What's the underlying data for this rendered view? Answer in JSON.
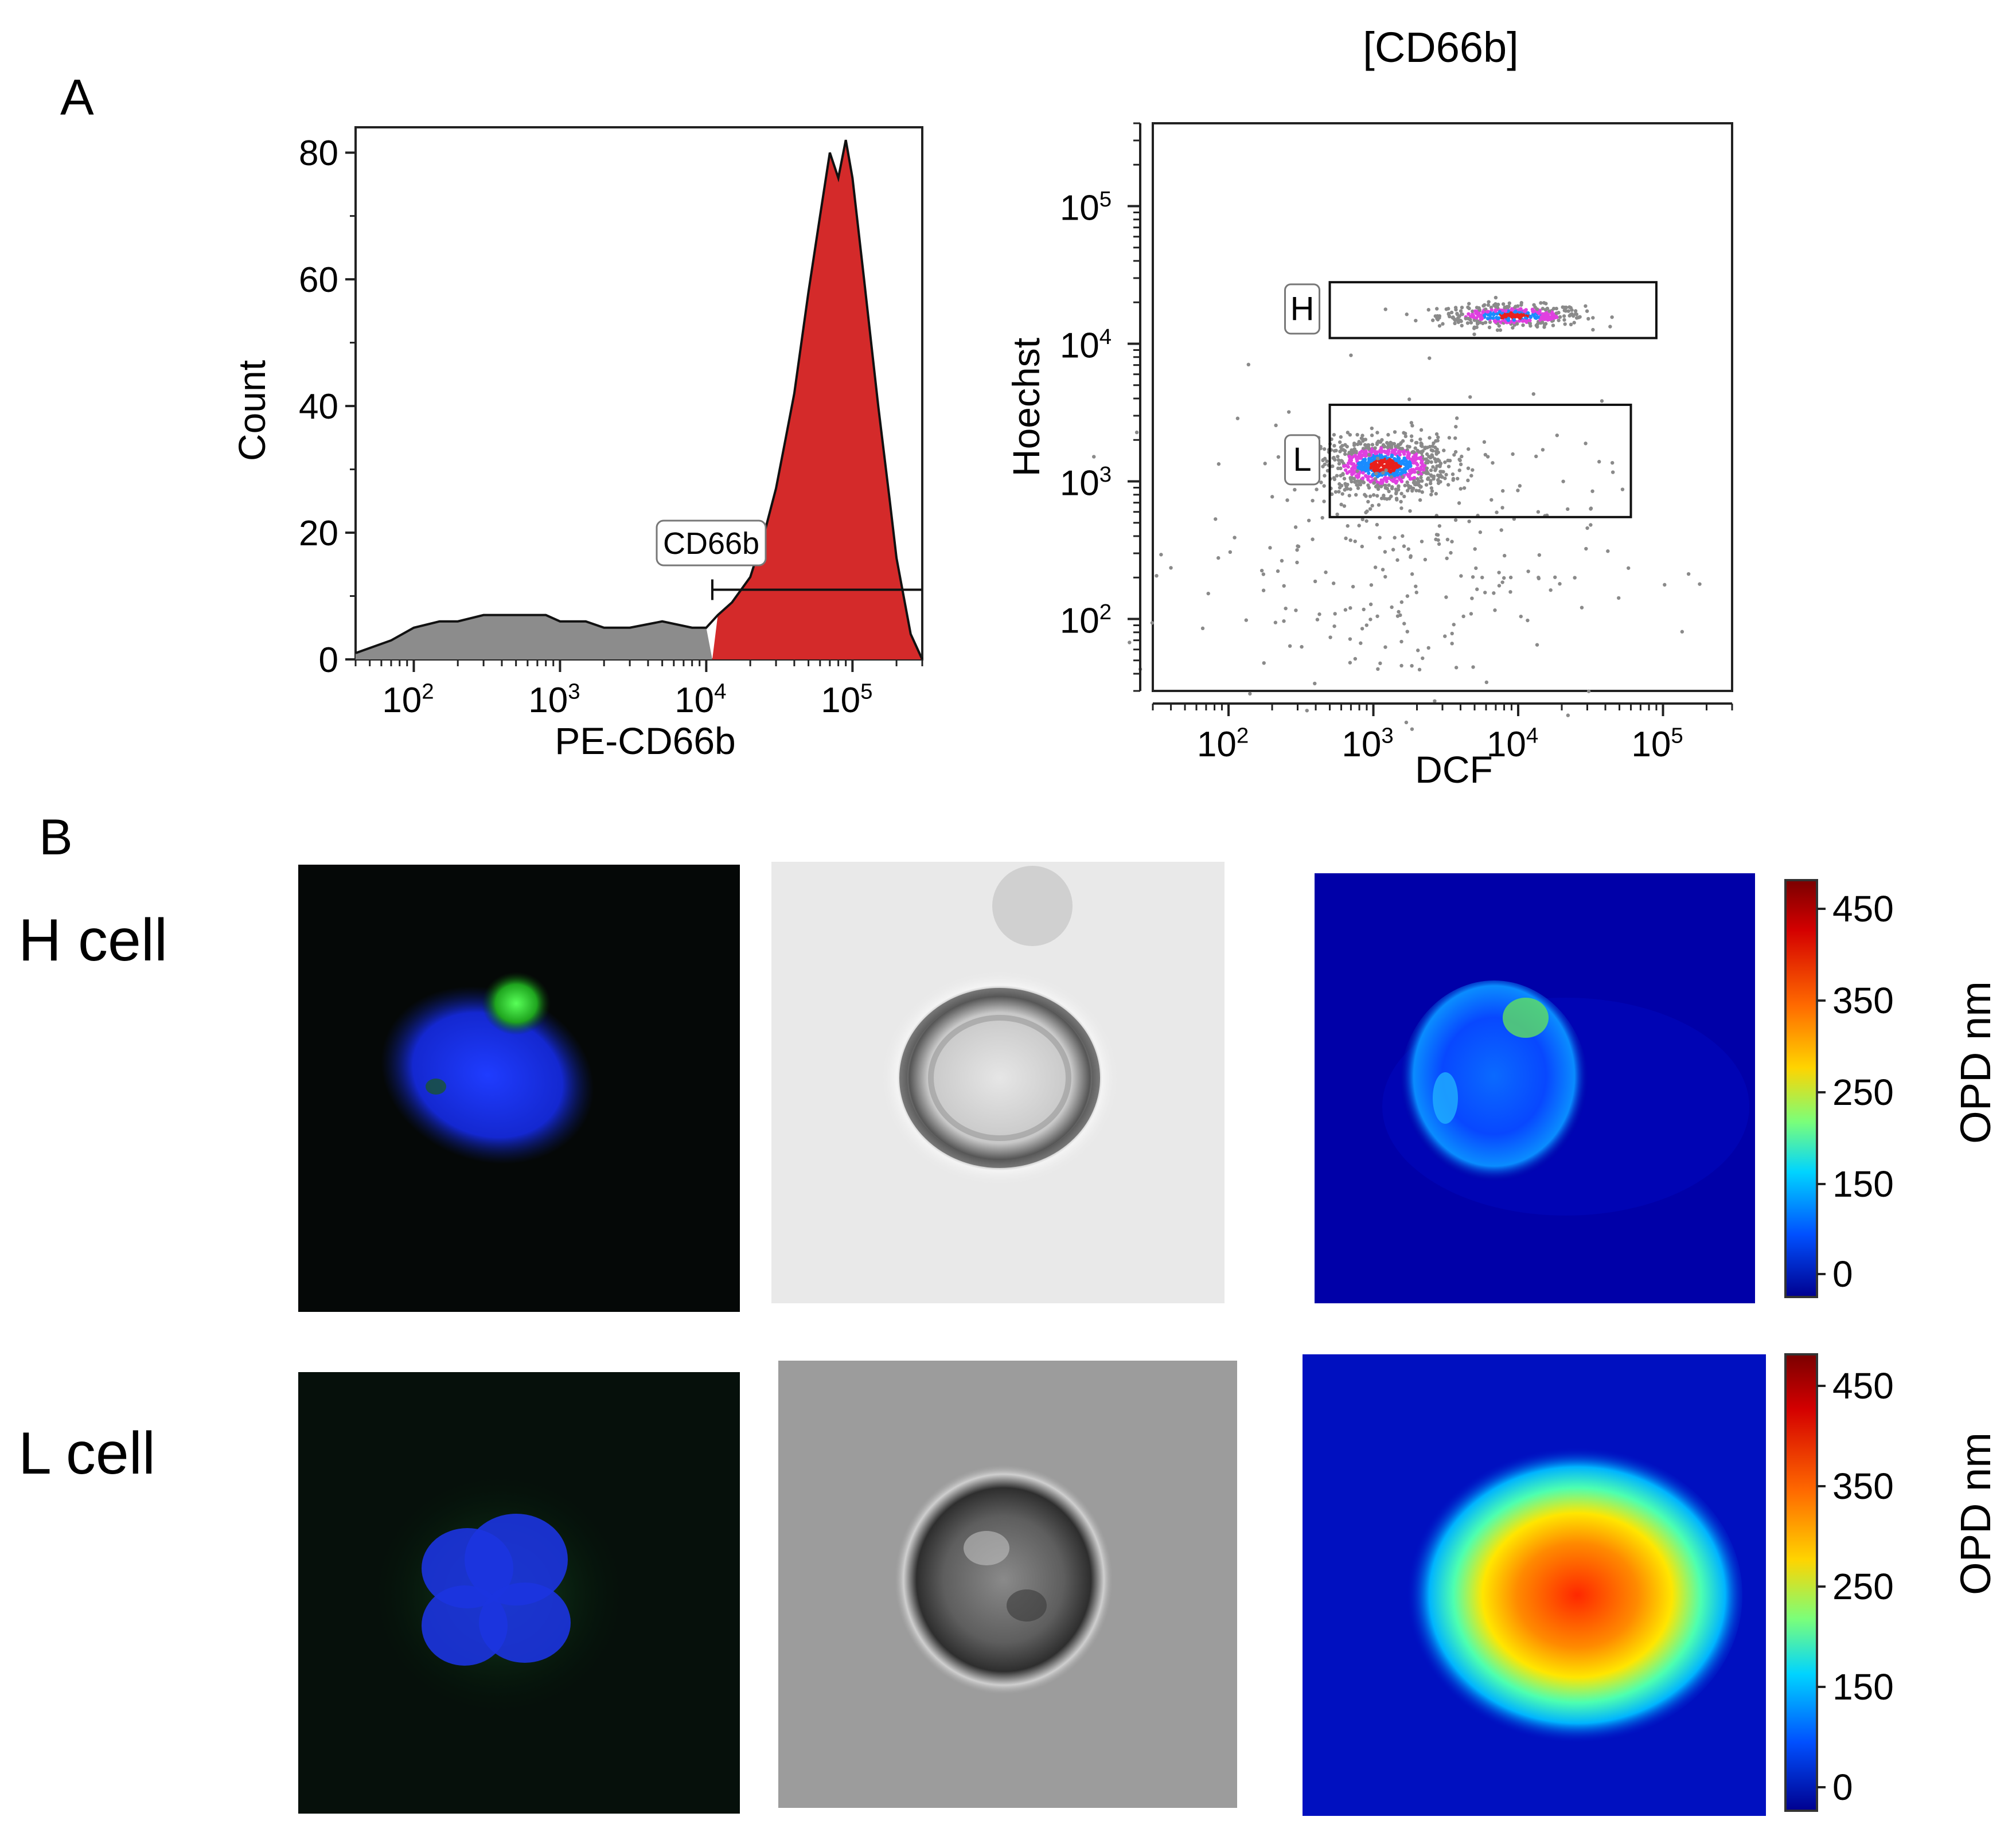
{
  "panel_labels": {
    "a": "A",
    "b": "B"
  },
  "chart_data": [
    {
      "type": "area",
      "panel": "A",
      "title": "",
      "xlabel": "PE-CD66b",
      "ylabel": "Count",
      "xscale": "log",
      "xlim": [
        40,
        300000
      ],
      "ylim": [
        0,
        84
      ],
      "x_ticks": [
        100,
        1000,
        10000,
        100000
      ],
      "x_tick_labels": [
        "10",
        "10",
        "10",
        "10"
      ],
      "x_tick_exponents": [
        "2",
        "3",
        "4",
        "5"
      ],
      "y_ticks": [
        0,
        20,
        40,
        60,
        80
      ],
      "y_tick_labels": [
        "0",
        "20",
        "40",
        "60",
        "80"
      ],
      "gate": {
        "label": "CD66b",
        "range": [
          11000,
          300000
        ],
        "level": 11
      },
      "series": [
        {
          "fill": "#d42a2a",
          "x": [
            40,
            70,
            100,
            150,
            200,
            300,
            500,
            800,
            1000,
            1500,
            2000,
            3000,
            5000,
            8000,
            10000,
            12000,
            15000,
            20000,
            25000,
            30000,
            35000,
            40000,
            50000,
            60000,
            70000,
            80000,
            90000,
            100000,
            120000,
            150000,
            180000,
            200000,
            250000,
            300000
          ],
          "y": [
            1,
            3,
            5,
            6,
            6,
            7,
            7,
            7,
            6,
            6,
            5,
            5,
            6,
            5,
            5,
            7,
            9,
            13,
            20,
            27,
            35,
            42,
            58,
            70,
            80,
            76,
            82,
            76,
            60,
            40,
            25,
            16,
            4,
            0
          ]
        }
      ],
      "grid": false,
      "legend": "none"
    },
    {
      "type": "scatter",
      "panel": "A",
      "title": "[CD66b]",
      "xlabel": "DCF",
      "ylabel": "Hoechst",
      "xscale": "log",
      "yscale": "log",
      "xlim": [
        30,
        300000
      ],
      "ylim": [
        30,
        400000
      ],
      "x_ticks": [
        100,
        1000,
        10000,
        100000
      ],
      "y_ticks": [
        100,
        1000,
        10000,
        100000
      ],
      "tick_base": "10",
      "tick_exponents": [
        "2",
        "3",
        "4",
        "5"
      ],
      "gates": [
        {
          "label": "H",
          "x_range": [
            500,
            90000
          ],
          "y_range": [
            11000,
            28000
          ]
        },
        {
          "label": "L",
          "x_range": [
            500,
            60000
          ],
          "y_range": [
            550,
            3600
          ]
        }
      ],
      "populations": [
        {
          "name": "H",
          "x_center": 9000,
          "y_center": 16000,
          "x_spread": 0.25,
          "y_spread": 0.04,
          "count": 420
        },
        {
          "name": "L",
          "x_center": 1200,
          "y_center": 1300,
          "x_spread": 0.22,
          "y_spread": 0.1,
          "count": 900
        },
        {
          "name": "scatter",
          "x_center": 1500,
          "y_center": 300,
          "x_spread": 0.7,
          "y_spread": 0.55,
          "count": 260
        }
      ],
      "grid": false,
      "legend": "none"
    }
  ],
  "panel_b": {
    "rows": [
      {
        "label": "H cell"
      },
      {
        "label": "L cell"
      }
    ],
    "colorbar": {
      "label": "OPD nm",
      "ticks": [
        "450",
        "350",
        "250",
        "150",
        "0"
      ],
      "colors": [
        "#7a0000",
        "#d40000",
        "#ff6a00",
        "#ffd400",
        "#7aff7a",
        "#00d4ff",
        "#0050ff",
        "#00008f"
      ]
    },
    "image_descriptions": []
  }
}
